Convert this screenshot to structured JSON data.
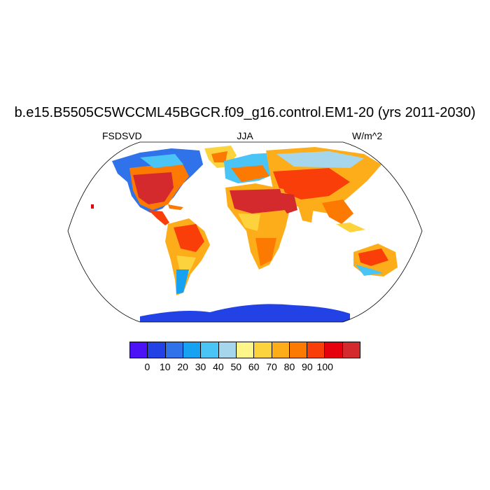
{
  "title": "b.e15.B5505C5WCCML45BGCR.f09_g16.control.EM1-20 (yrs 2011-2030)",
  "left_label": "FSDSVD",
  "center_label": "JJA",
  "right_label": "W/m^2",
  "projection": "robinson",
  "colorbar": {
    "colors": [
      "#4b13f5",
      "#2342e6",
      "#2f72ea",
      "#16a2f0",
      "#4ac4f4",
      "#a6d6ec",
      "#fdf58a",
      "#fdd33d",
      "#fdad19",
      "#fd7a02",
      "#f93e0a",
      "#e6010f",
      "#d42a2d"
    ],
    "labels": [
      "0",
      "10",
      "20",
      "30",
      "40",
      "50",
      "60",
      "70",
      "80",
      "90",
      "100"
    ]
  }
}
